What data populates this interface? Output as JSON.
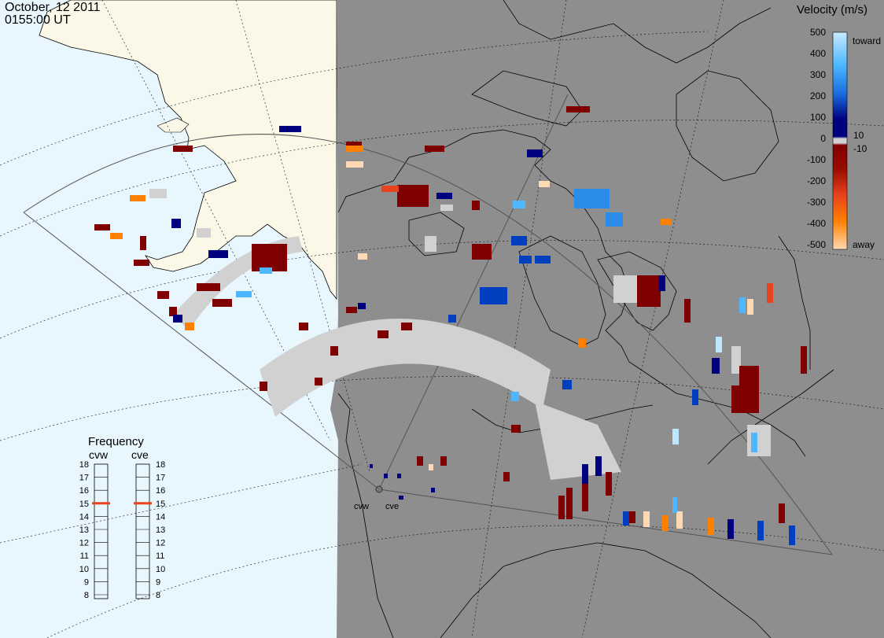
{
  "header": {
    "date": "October, 12 2011",
    "time": "0155:00 UT"
  },
  "velocity_scale": {
    "title": "Velocity (m/s)",
    "toward_label": "toward",
    "away_label": "away",
    "ticks": [
      "500",
      "400",
      "300",
      "200",
      "100",
      "10",
      "0",
      "-10",
      "-100",
      "-200",
      "-300",
      "-400",
      "-500"
    ]
  },
  "frequency_panel": {
    "title": "Frequency",
    "left_label": "cvw",
    "right_label": "cve",
    "ticks": [
      "18",
      "17",
      "16",
      "15",
      "14",
      "13",
      "12",
      "11",
      "10",
      "9",
      "8"
    ],
    "cvw_value": 15,
    "cve_value": 15,
    "marker_color": "#e8431d"
  },
  "radars": [
    {
      "code": "cvw",
      "label": "cvw"
    },
    {
      "code": "cve",
      "label": "cve"
    }
  ],
  "colors": {
    "ocean": "#e8f6fe",
    "land": "#fbf8e8",
    "night_shade": "#8e8e8e",
    "ground_scatter": "#d1d1d1",
    "strong_away": "#7f0000",
    "orange_away": "#ff8000",
    "pale_away": "#ffd9b3",
    "strong_toward": "#00007f",
    "mid_toward": "#0040c0",
    "light_toward": "#4db8ff"
  }
}
